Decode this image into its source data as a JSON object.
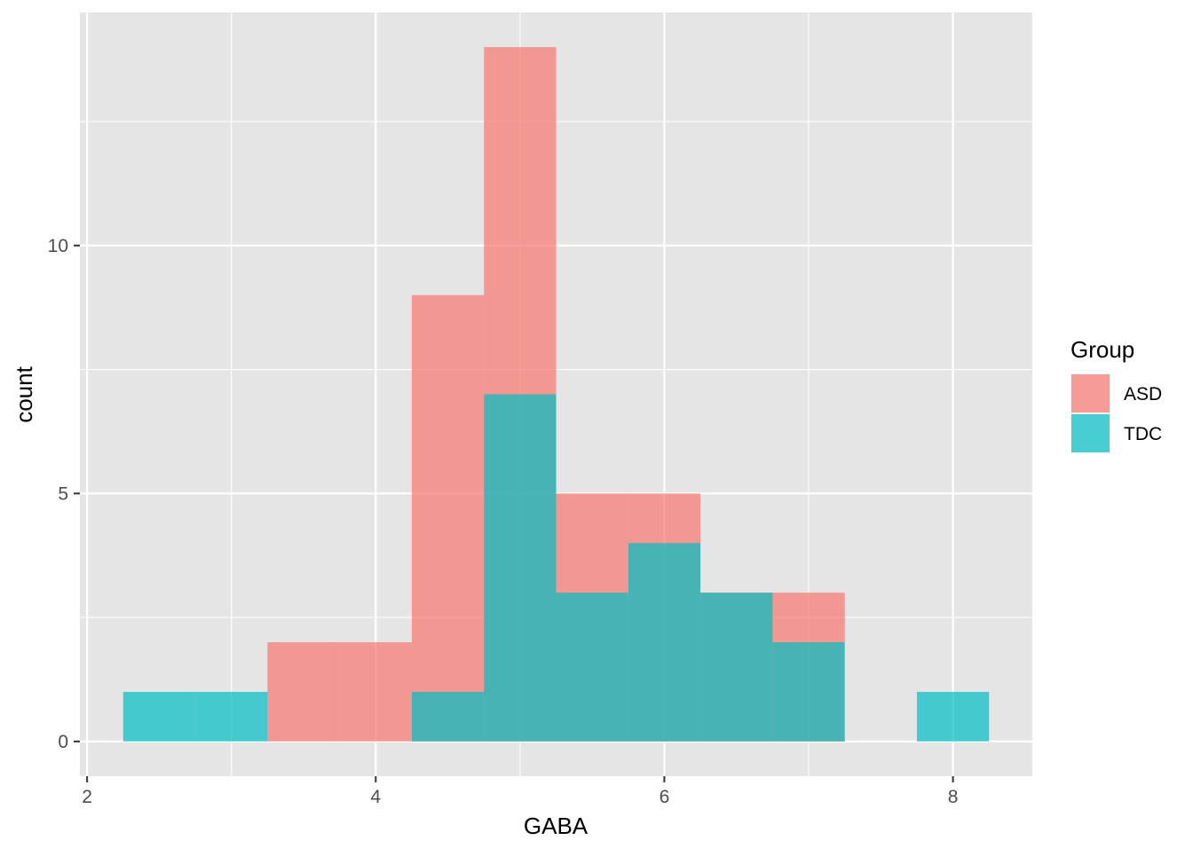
{
  "chart_data": {
    "type": "bar",
    "subtype": "overlapping histogram",
    "title": "",
    "xlabel": "GABA",
    "ylabel": "count",
    "xlim": [
      1.95,
      8.55
    ],
    "ylim": [
      -0.7,
      14.7
    ],
    "xticks": [
      2,
      4,
      6,
      8
    ],
    "yticks": [
      0,
      5,
      10
    ],
    "x_minor_gridlines": [
      3,
      5,
      7
    ],
    "y_minor_gridlines": [
      2.5,
      7.5,
      12.5
    ],
    "grid": true,
    "bin_width": 0.5,
    "bin_centers": [
      2.5,
      3.0,
      3.5,
      4.0,
      4.5,
      5.0,
      5.5,
      6.0,
      6.5,
      7.0,
      7.5,
      8.0
    ],
    "legend": {
      "title": "Group",
      "position": "right"
    },
    "series": [
      {
        "name": "ASD",
        "color": "#F8766D",
        "values": [
          0,
          0,
          2,
          2,
          9,
          14,
          5,
          5,
          3,
          3,
          0,
          0
        ]
      },
      {
        "name": "TDC",
        "color": "#00BFC4",
        "values": [
          1,
          1,
          0,
          0,
          1,
          7,
          3,
          4,
          3,
          2,
          0,
          1
        ]
      }
    ],
    "panel_background": "#E5E5E5",
    "grid_color": "#FFFFFF",
    "bar_opacity": 0.7
  }
}
